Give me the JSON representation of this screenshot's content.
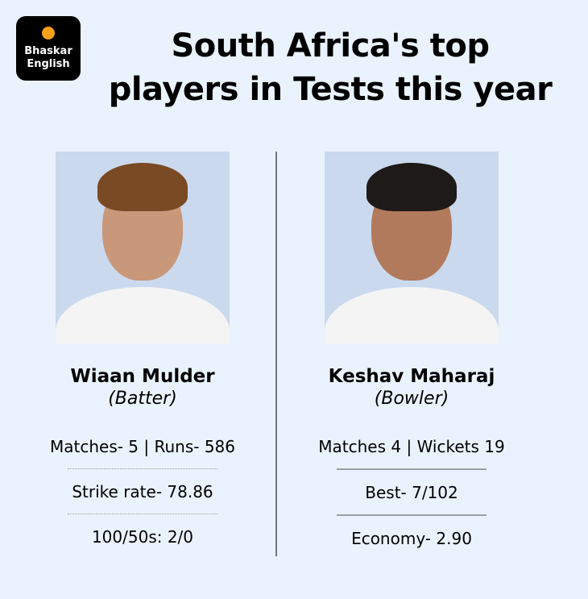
{
  "logo": {
    "line1": "Bhaskar",
    "line2": "English",
    "accent": "#f7a11a"
  },
  "title": {
    "line1": "South Africa's top",
    "line2": "players in Tests this year"
  },
  "players": [
    {
      "name": "Wiaan Mulder",
      "role": "(Batter)",
      "stats": [
        "Matches- 5 | Runs- 586",
        "Strike rate- 78.86",
        "100/50s: 2/0"
      ]
    },
    {
      "name": "Keshav Maharaj",
      "role": "(Bowler)",
      "stats": [
        "Matches 4 | Wickets 19",
        "Best- 7/102",
        "Economy- 2.90"
      ]
    }
  ]
}
